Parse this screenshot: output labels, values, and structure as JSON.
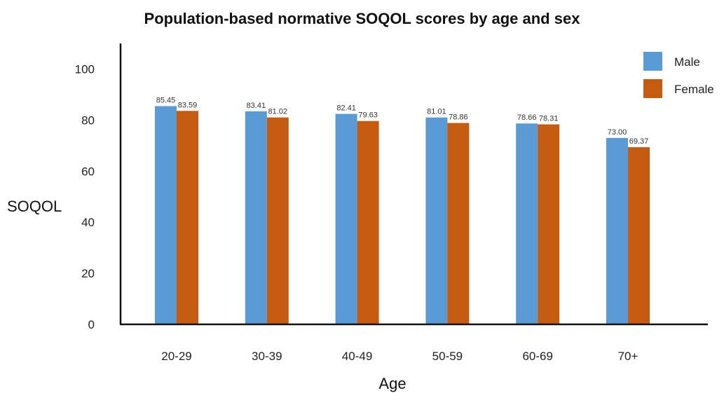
{
  "chart_data": {
    "type": "bar",
    "title": "Population-based normative SOQOL scores by age and sex",
    "xlabel": "Age",
    "ylabel": "SOQOL",
    "categories": [
      "20-29",
      "30-39",
      "40-49",
      "50-59",
      "60-69",
      "70+"
    ],
    "series": [
      {
        "name": "Male",
        "color": "#5b9bd5",
        "values": [
          85.45,
          83.41,
          82.41,
          81.01,
          78.66,
          73.0
        ]
      },
      {
        "name": "Female",
        "color": "#c55a11",
        "values": [
          83.59,
          81.02,
          79.63,
          78.86,
          78.31,
          69.37
        ]
      }
    ],
    "yticks": [
      0,
      20,
      40,
      60,
      80,
      100
    ],
    "ylim": [
      0,
      110
    ],
    "grid": false,
    "legend_position": "top-right",
    "data_labels": true
  }
}
